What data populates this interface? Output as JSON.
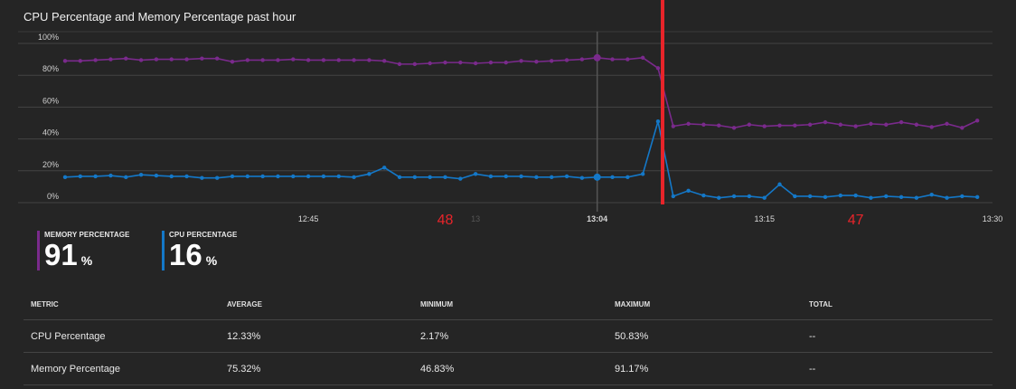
{
  "header": {
    "title": "CPU Percentage and Memory Percentage past hour"
  },
  "colors": {
    "memory": "#7a2a8c",
    "cpu": "#1478c8",
    "annotation": "#e8242a",
    "grid": "#444444",
    "crosshair": "#555555"
  },
  "chart_data": {
    "type": "line",
    "ylim": [
      0,
      100
    ],
    "y_ticks": [
      "0%",
      "20%",
      "40%",
      "60%",
      "80%",
      "100%"
    ],
    "y_tick_values": [
      0,
      20,
      40,
      60,
      80,
      100
    ],
    "x_ticks": [
      {
        "label": "12:45",
        "minute": 16,
        "bold": false,
        "faded": false
      },
      {
        "label": "13",
        "minute": 27,
        "bold": false,
        "faded": true
      },
      {
        "label": "13:04",
        "minute": 35,
        "bold": true,
        "faded": false
      },
      {
        "label": "13:15",
        "minute": 46,
        "bold": false,
        "faded": false
      },
      {
        "label": "13:30",
        "minute": 61,
        "bold": false,
        "faded": false
      }
    ],
    "x_range_minutes": [
      0,
      61
    ],
    "crosshair_minute": 35,
    "annotation_minute": 39.3,
    "annotation_labels": [
      {
        "text": "48",
        "minute": 25
      },
      {
        "text": "47",
        "minute": 52
      }
    ],
    "series": [
      {
        "name": "MEMORY PERCENTAGE",
        "values": [
          89,
          89,
          89.5,
          90,
          90.5,
          89.5,
          90,
          90,
          90,
          90.5,
          90.5,
          88.5,
          89.5,
          89.5,
          89.5,
          90,
          89.5,
          89.5,
          89.5,
          89.5,
          89.5,
          89,
          87,
          87,
          87.5,
          88,
          88,
          87.5,
          88,
          88,
          89,
          88.5,
          89,
          89.5,
          90,
          91,
          90,
          90,
          91,
          84.5,
          48,
          49.5,
          49,
          48.5,
          47,
          49,
          48,
          48.5,
          48.5,
          49,
          50.5,
          49,
          48,
          49.5,
          49,
          50.5,
          49,
          47.5,
          49.5,
          47,
          51.5
        ]
      },
      {
        "name": "CPU PERCENTAGE",
        "values": [
          16,
          16.5,
          16.5,
          17,
          16,
          17.5,
          17,
          16.5,
          16.5,
          15.5,
          15.5,
          16.5,
          16.5,
          16.5,
          16.5,
          16.5,
          16.5,
          16.5,
          16.5,
          16,
          18,
          22,
          16,
          16,
          16,
          16,
          15,
          18,
          16.5,
          16.5,
          16.5,
          16,
          16,
          16.5,
          15.5,
          16,
          16,
          16,
          18,
          51,
          4,
          7.5,
          4.5,
          3,
          4,
          4,
          3,
          11.5,
          4,
          4,
          3.5,
          4.5,
          4.5,
          3,
          4,
          3.5,
          3,
          5,
          3,
          4,
          3.5
        ]
      }
    ]
  },
  "legend": [
    {
      "name": "MEMORY PERCENTAGE",
      "value": "91",
      "unit": "%"
    },
    {
      "name": "CPU PERCENTAGE",
      "value": "16",
      "unit": "%"
    }
  ],
  "table": {
    "headers": [
      "METRIC",
      "AVERAGE",
      "MINIMUM",
      "MAXIMUM",
      "TOTAL"
    ],
    "rows": [
      [
        "CPU Percentage",
        "12.33%",
        "2.17%",
        "50.83%",
        "--"
      ],
      [
        "Memory Percentage",
        "75.32%",
        "46.83%",
        "91.17%",
        "--"
      ]
    ]
  }
}
